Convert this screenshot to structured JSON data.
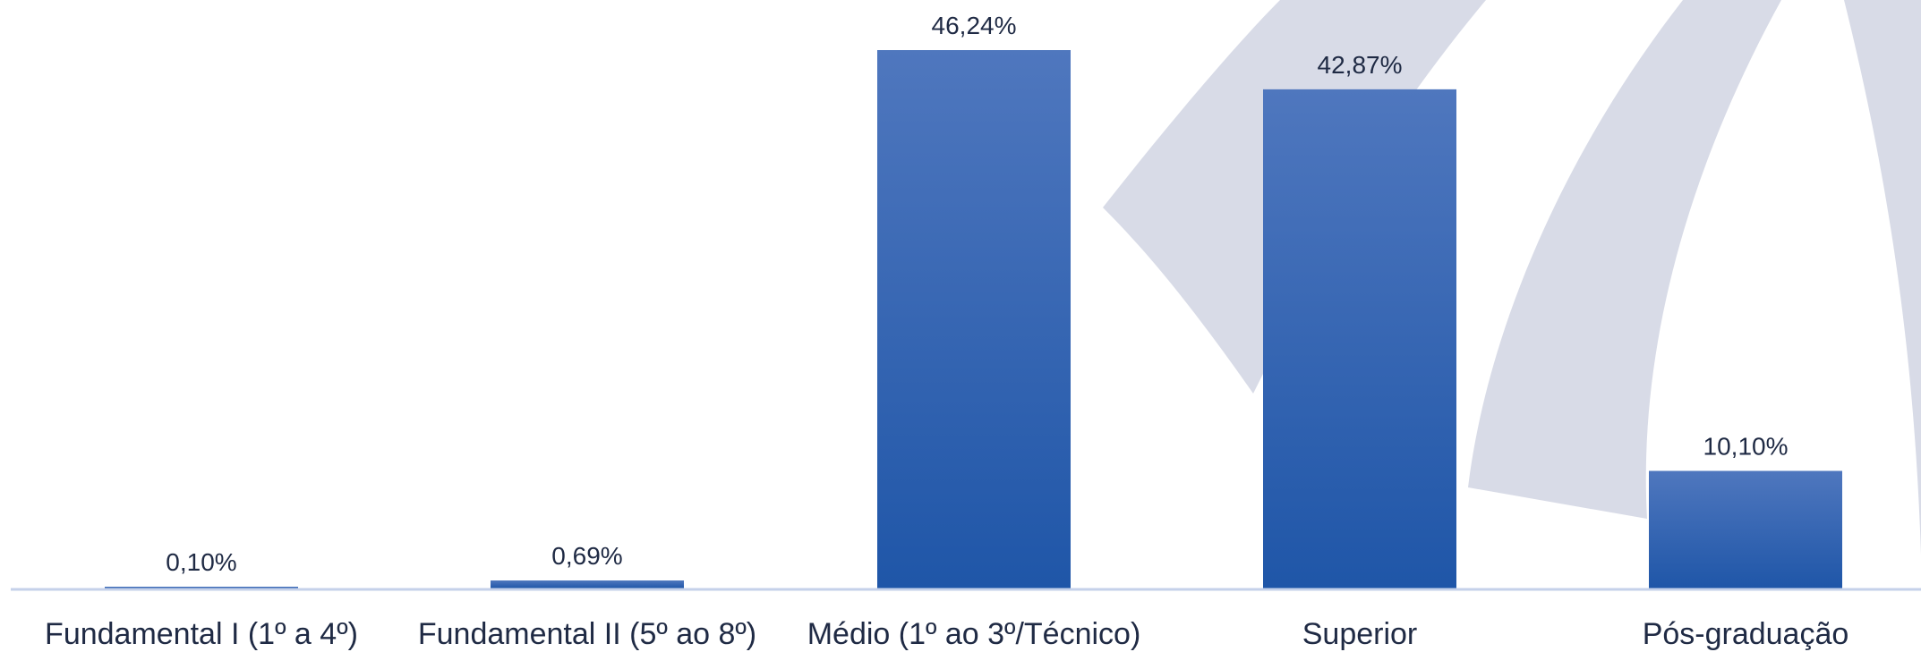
{
  "chart_data": {
    "type": "bar",
    "categories": [
      "Fundamental I (1º a 4º)",
      "Fundamental II (5º ao 8º)",
      "Médio (1º ao 3º/Técnico)",
      "Superior",
      "Pós-graduação"
    ],
    "values": [
      0.1,
      0.69,
      46.24,
      42.87,
      10.1
    ],
    "data_labels": [
      "0,10%",
      "0,69%",
      "46,24%",
      "42,87%",
      "10,10%"
    ],
    "ylim": [
      0,
      46.24
    ],
    "grid": false,
    "legend": "none",
    "colors": {
      "bar_top": "#4f77be",
      "bar_bottom": "#1f56a8",
      "axis": "#c5d1ea",
      "text": "#1f2a44",
      "watermark": "#d8dbe7"
    }
  }
}
